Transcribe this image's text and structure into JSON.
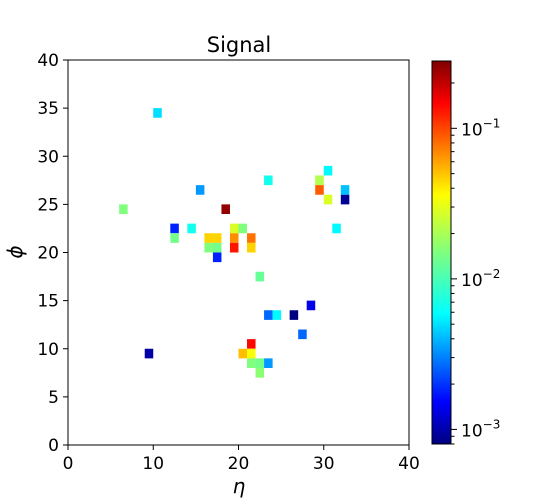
{
  "chart_data": {
    "type": "heatmap",
    "title": "Signal",
    "xlabel": "η",
    "ylabel": "ϕ",
    "xlim": [
      0,
      40
    ],
    "ylim": [
      0,
      40
    ],
    "xticks": [
      "0",
      "10",
      "20",
      "30",
      "40"
    ],
    "yticks": [
      "0",
      "5",
      "10",
      "15",
      "20",
      "25",
      "30",
      "35",
      "40"
    ],
    "colorbar": {
      "scale": "log",
      "range": [
        0.0008,
        0.28
      ],
      "colormap": "jet",
      "tick_labels": [
        {
          "base": "10",
          "exp": "−3",
          "value": 0.001
        },
        {
          "base": "10",
          "exp": "−2",
          "value": 0.01
        },
        {
          "base": "10",
          "exp": "−1",
          "value": 0.1
        }
      ]
    },
    "cells": [
      {
        "x": 10,
        "y": 34,
        "v": 0.006
      },
      {
        "x": 6,
        "y": 24,
        "v": 0.015
      },
      {
        "x": 15,
        "y": 26,
        "v": 0.004
      },
      {
        "x": 18,
        "y": 24,
        "v": 0.25
      },
      {
        "x": 12,
        "y": 22,
        "v": 0.002
      },
      {
        "x": 14,
        "y": 22,
        "v": 0.008
      },
      {
        "x": 12,
        "y": 21,
        "v": 0.014
      },
      {
        "x": 16,
        "y": 21,
        "v": 0.04
      },
      {
        "x": 17,
        "y": 21,
        "v": 0.04
      },
      {
        "x": 16,
        "y": 20,
        "v": 0.015
      },
      {
        "x": 17,
        "y": 20,
        "v": 0.014
      },
      {
        "x": 17,
        "y": 19,
        "v": 0.002
      },
      {
        "x": 19,
        "y": 22,
        "v": 0.025
      },
      {
        "x": 20,
        "y": 22,
        "v": 0.015
      },
      {
        "x": 19,
        "y": 21,
        "v": 0.06
      },
      {
        "x": 19,
        "y": 20,
        "v": 0.12
      },
      {
        "x": 21,
        "y": 21,
        "v": 0.07
      },
      {
        "x": 21,
        "y": 20,
        "v": 0.04
      },
      {
        "x": 23,
        "y": 27,
        "v": 0.008
      },
      {
        "x": 22,
        "y": 17,
        "v": 0.013
      },
      {
        "x": 29,
        "y": 27,
        "v": 0.02
      },
      {
        "x": 29,
        "y": 26,
        "v": 0.08
      },
      {
        "x": 30,
        "y": 28,
        "v": 0.007
      },
      {
        "x": 30,
        "y": 25,
        "v": 0.025
      },
      {
        "x": 32,
        "y": 26,
        "v": 0.005
      },
      {
        "x": 32,
        "y": 25,
        "v": 0.0009
      },
      {
        "x": 31,
        "y": 22,
        "v": 0.007
      },
      {
        "x": 23,
        "y": 13,
        "v": 0.003
      },
      {
        "x": 24,
        "y": 13,
        "v": 0.007
      },
      {
        "x": 26,
        "y": 13,
        "v": 0.0008
      },
      {
        "x": 28,
        "y": 14,
        "v": 0.0015
      },
      {
        "x": 27,
        "y": 11,
        "v": 0.003
      },
      {
        "x": 9,
        "y": 9,
        "v": 0.001
      },
      {
        "x": 21,
        "y": 10,
        "v": 0.13
      },
      {
        "x": 20,
        "y": 9,
        "v": 0.045
      },
      {
        "x": 21,
        "y": 9,
        "v": 0.03
      },
      {
        "x": 21,
        "y": 8,
        "v": 0.015
      },
      {
        "x": 22,
        "y": 8,
        "v": 0.014
      },
      {
        "x": 23,
        "y": 8,
        "v": 0.004
      },
      {
        "x": 22,
        "y": 7,
        "v": 0.016
      }
    ]
  }
}
